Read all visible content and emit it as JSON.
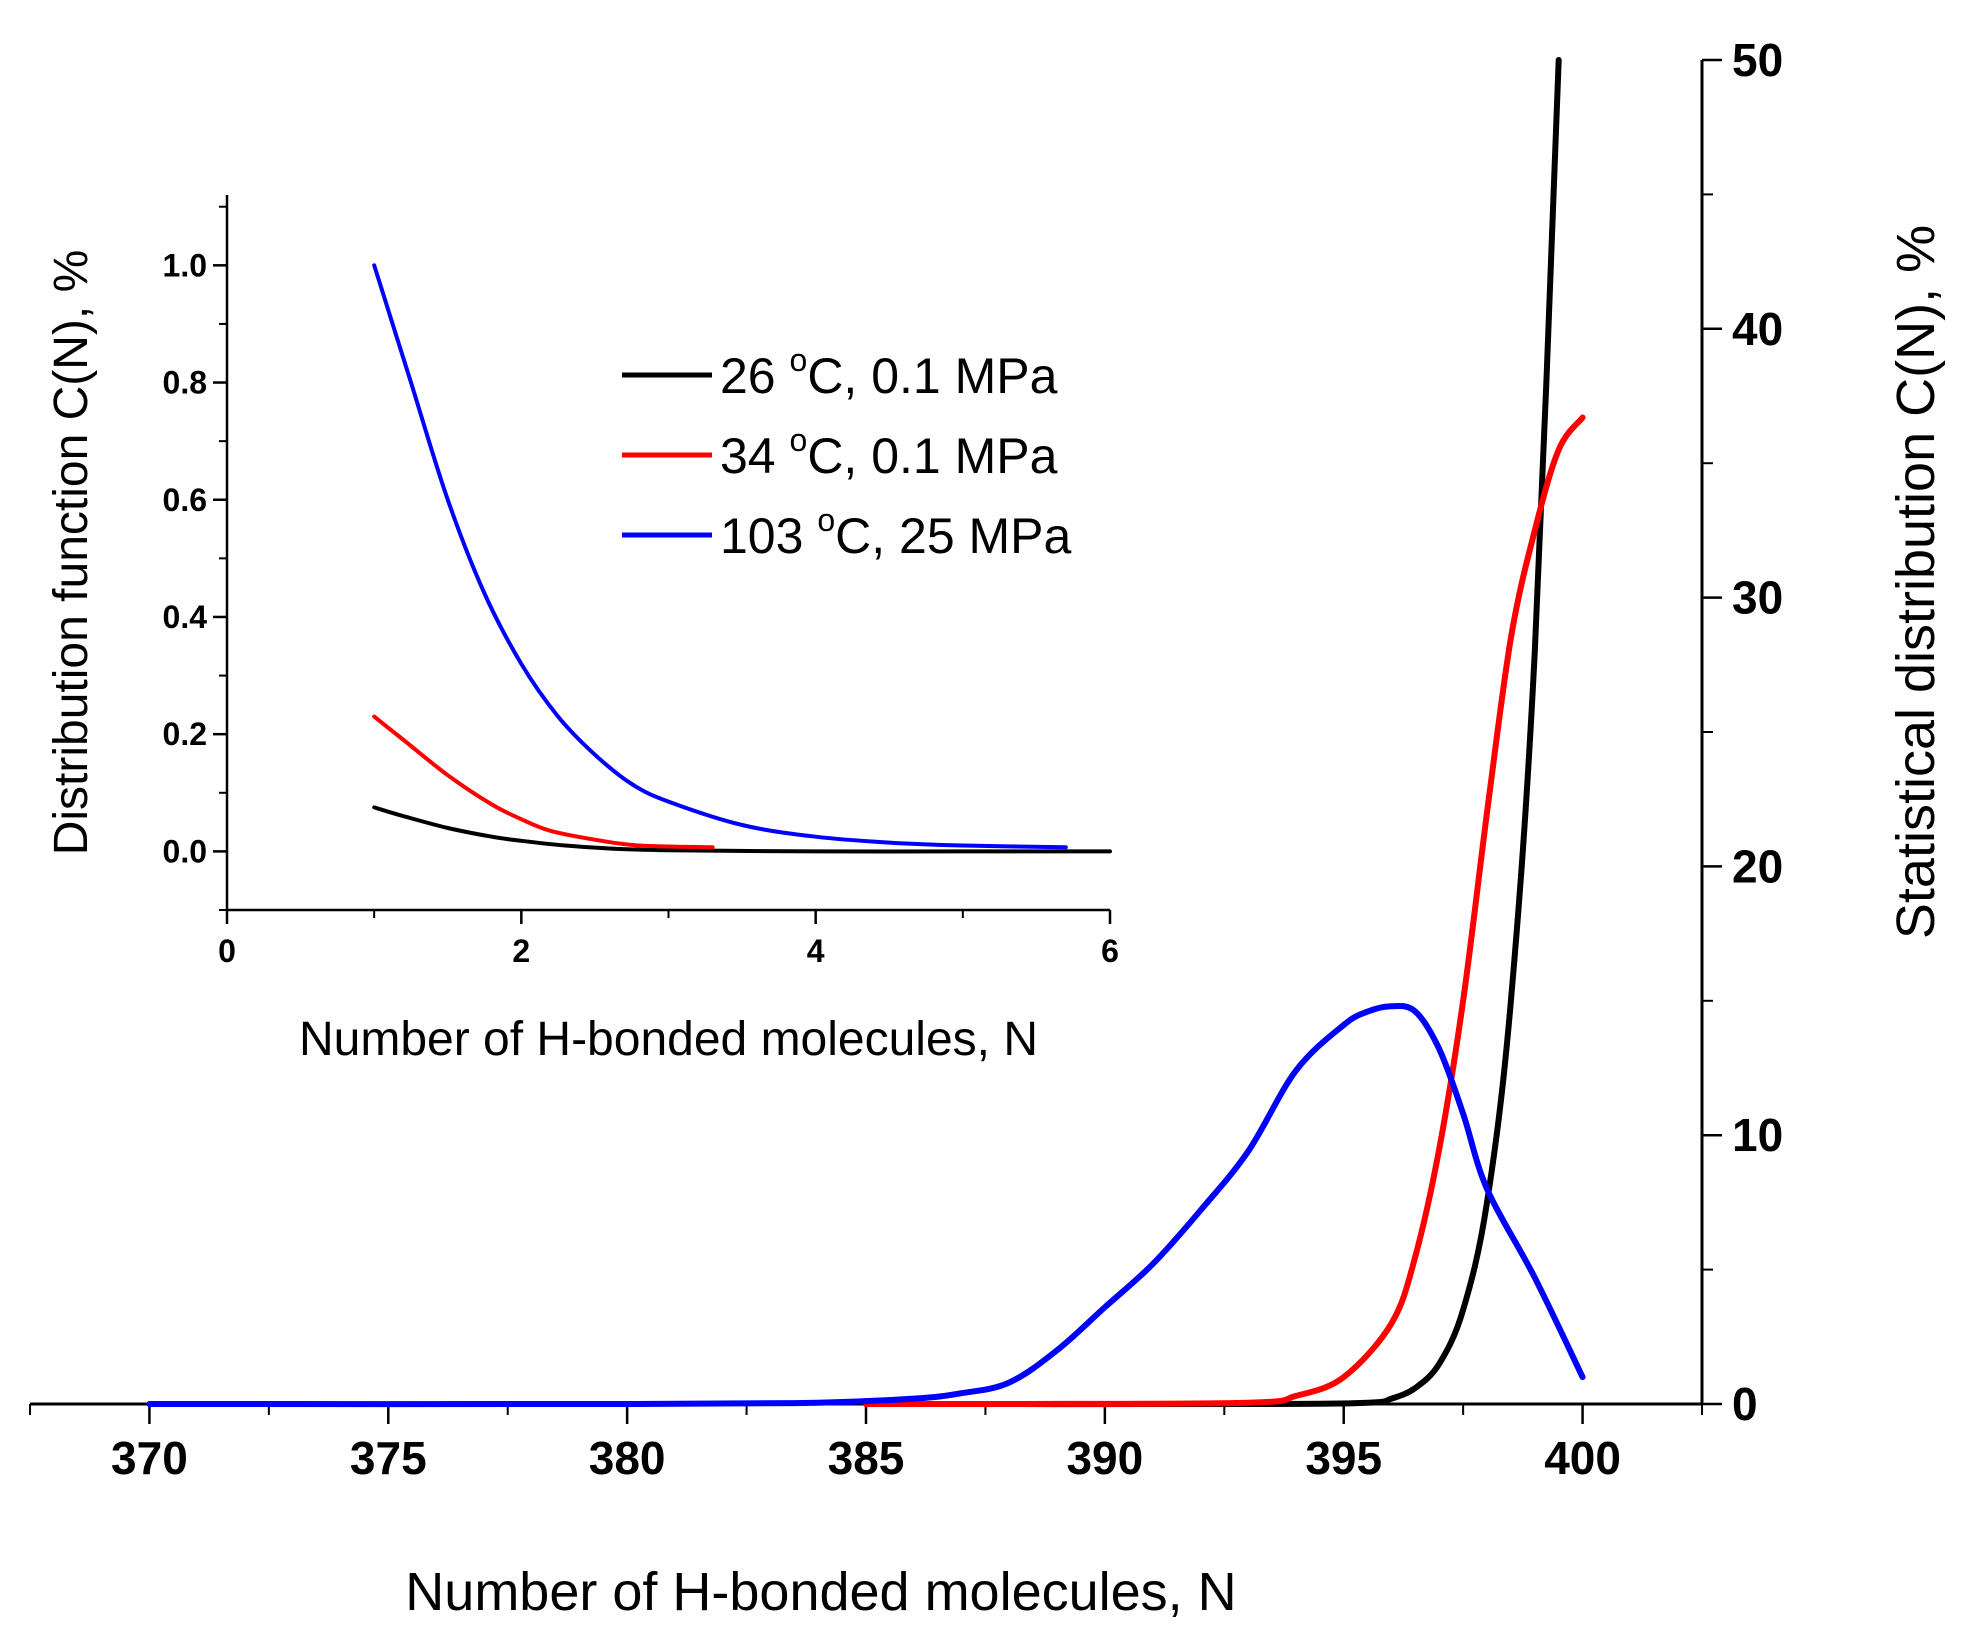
{
  "chart_data": [
    {
      "id": "main",
      "type": "line",
      "title": "",
      "xlabel": "Number of H-bonded molecules, N",
      "ylabel": "Statistical distribution C(N), %",
      "ylabel_side": "right",
      "xlim": [
        367.5,
        402.5
      ],
      "ylim": [
        0,
        50
      ],
      "xticks": [
        "370",
        "375",
        "380",
        "385",
        "390",
        "395",
        "400"
      ],
      "xtick_values": [
        370,
        375,
        380,
        385,
        390,
        395,
        400
      ],
      "yticks": [
        "0",
        "10",
        "20",
        "30",
        "40",
        "50"
      ],
      "ytick_values": [
        0,
        10,
        20,
        30,
        40,
        50
      ],
      "series": [
        {
          "name": "26 °C, 0.1 MPa",
          "color": "#000000",
          "x": [
            385,
            393,
            395.5,
            396,
            396.5,
            397,
            397.5,
            398,
            398.5,
            399,
            399.5
          ],
          "y": [
            0,
            0,
            0.05,
            0.2,
            0.6,
            1.5,
            3.5,
            7.5,
            15,
            28,
            50
          ]
        },
        {
          "name": "34 °C, 0.1 MPa",
          "color": "#ff0000",
          "x": [
            385,
            388,
            393,
            394,
            395,
            396,
            396.5,
            397,
            397.5,
            398,
            398.5,
            399,
            399.5,
            400
          ],
          "y": [
            0,
            0,
            0.05,
            0.3,
            1.0,
            3.0,
            5.5,
            9.5,
            15,
            22,
            28.5,
            32.5,
            35.5,
            36.7
          ]
        },
        {
          "name": "103 °C, 25 MPa",
          "color": "#0000ff",
          "x": [
            370,
            380,
            384,
            386,
            387,
            388,
            389,
            390,
            391,
            392,
            393,
            394,
            395,
            395.5,
            396,
            396.5,
            397,
            397.5,
            398,
            399,
            400
          ],
          "y": [
            0,
            0,
            0.05,
            0.2,
            0.4,
            0.8,
            2.0,
            3.6,
            5.2,
            7.2,
            9.4,
            12.4,
            14.1,
            14.6,
            14.8,
            14.6,
            13.2,
            10.8,
            8.0,
            4.7,
            1.0
          ]
        }
      ]
    },
    {
      "id": "inset",
      "type": "line",
      "title": "",
      "xlabel": "Number of H-bonded molecules, N",
      "ylabel": "Distribution function C(N), %",
      "ylabel_side": "left",
      "xlim": [
        0,
        6
      ],
      "ylim": [
        -0.1,
        1.12
      ],
      "xticks": [
        "0",
        "2",
        "4",
        "6"
      ],
      "xtick_values": [
        0,
        2,
        4,
        6
      ],
      "yticks": [
        "0.0",
        "0.2",
        "0.4",
        "0.6",
        "0.8",
        "1.0"
      ],
      "ytick_values": [
        0,
        0.2,
        0.4,
        0.6,
        0.8,
        1.0
      ],
      "series": [
        {
          "name": "26 °C, 0.1 MPa",
          "color": "#000000",
          "x": [
            1,
            1.2,
            1.5,
            1.8,
            2.0,
            2.3,
            2.6,
            3.0,
            4.0,
            5.0,
            6.0
          ],
          "y": [
            0.075,
            0.06,
            0.04,
            0.025,
            0.018,
            0.01,
            0.005,
            0.002,
            0,
            0,
            0
          ]
        },
        {
          "name": "34 °C, 0.1 MPa",
          "color": "#ff0000",
          "x": [
            1,
            1.2,
            1.5,
            1.8,
            2.0,
            2.2,
            2.5,
            2.8,
            3.3
          ],
          "y": [
            0.23,
            0.19,
            0.13,
            0.08,
            0.055,
            0.035,
            0.02,
            0.01,
            0.007
          ]
        },
        {
          "name": "103 °C, 25 MPa",
          "color": "#0000ff",
          "x": [
            1,
            1.25,
            1.5,
            1.75,
            2.0,
            2.25,
            2.5,
            2.75,
            3.0,
            3.5,
            4.0,
            4.5,
            5.0,
            5.7
          ],
          "y": [
            1.0,
            0.8,
            0.6,
            0.44,
            0.32,
            0.23,
            0.165,
            0.115,
            0.085,
            0.045,
            0.025,
            0.015,
            0.01,
            0.007
          ]
        }
      ],
      "legend": {
        "position": "inside-top-right",
        "entries": [
          {
            "base": "26 ",
            "sup": "o",
            "rest": "C, 0.1 MPa",
            "color": "#000000"
          },
          {
            "base": "34 ",
            "sup": "o",
            "rest": "C, 0.1 MPa",
            "color": "#ff0000"
          },
          {
            "base": "103 ",
            "sup": "o",
            "rest": "C, 25 MPa",
            "color": "#0000ff"
          }
        ]
      }
    }
  ]
}
